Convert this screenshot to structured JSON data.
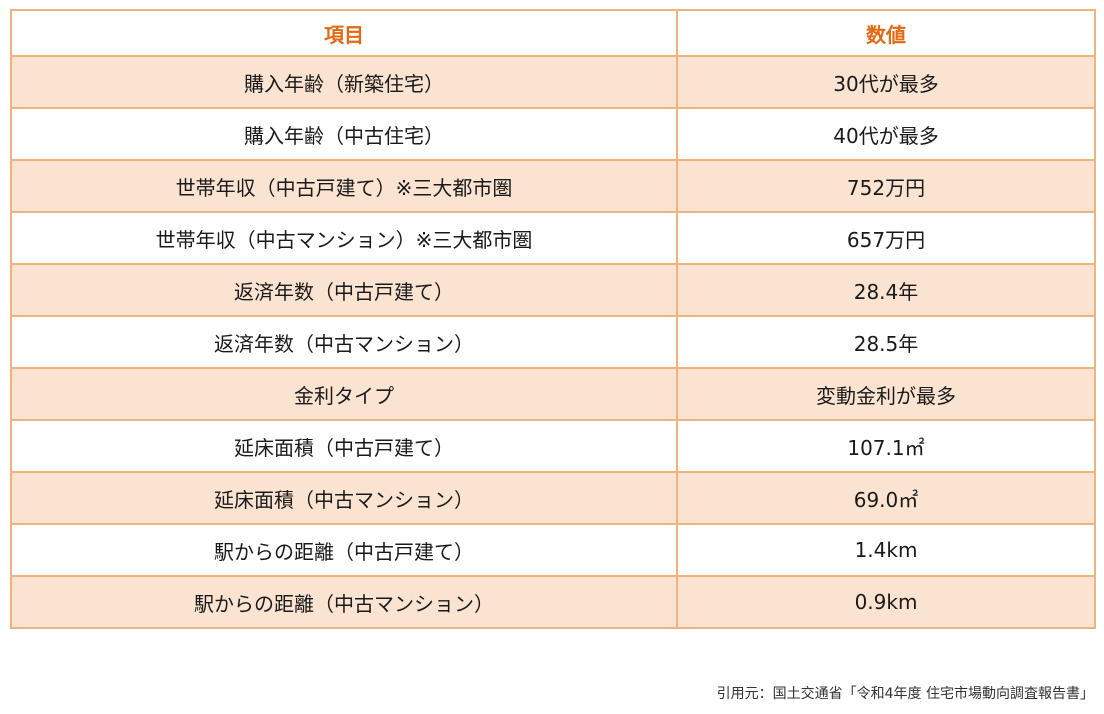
{
  "table": {
    "headers": {
      "item": "項目",
      "value": "数値"
    },
    "rows": [
      {
        "item": "購入年齢（新築住宅）",
        "value": "30代が最多"
      },
      {
        "item": "購入年齢（中古住宅）",
        "value": "40代が最多"
      },
      {
        "item": "世帯年収（中古戸建て）※三大都市圏",
        "value": "752万円"
      },
      {
        "item": "世帯年収（中古マンション）※三大都市圏",
        "value": "657万円"
      },
      {
        "item": "返済年数（中古戸建て）",
        "value": "28.4年"
      },
      {
        "item": "返済年数（中古マンション）",
        "value": "28.5年"
      },
      {
        "item": "金利タイプ",
        "value": "変動金利が最多"
      },
      {
        "item": "延床面積（中古戸建て）",
        "value": "107.1㎡"
      },
      {
        "item": "延床面積（中古マンション）",
        "value": "69.0㎡"
      },
      {
        "item": "駅からの距離（中古戸建て）",
        "value": "1.4km"
      },
      {
        "item": "駅からの距離（中古マンション）",
        "value": "0.9km"
      }
    ]
  },
  "citation": "引用元：国土交通省「令和4年度 住宅市場動向調査報告書」",
  "colors": {
    "header_text": "#e26a12",
    "border": "#f0b27e",
    "shaded_row": "#fbe3d2",
    "plain_row": "#ffffff"
  }
}
